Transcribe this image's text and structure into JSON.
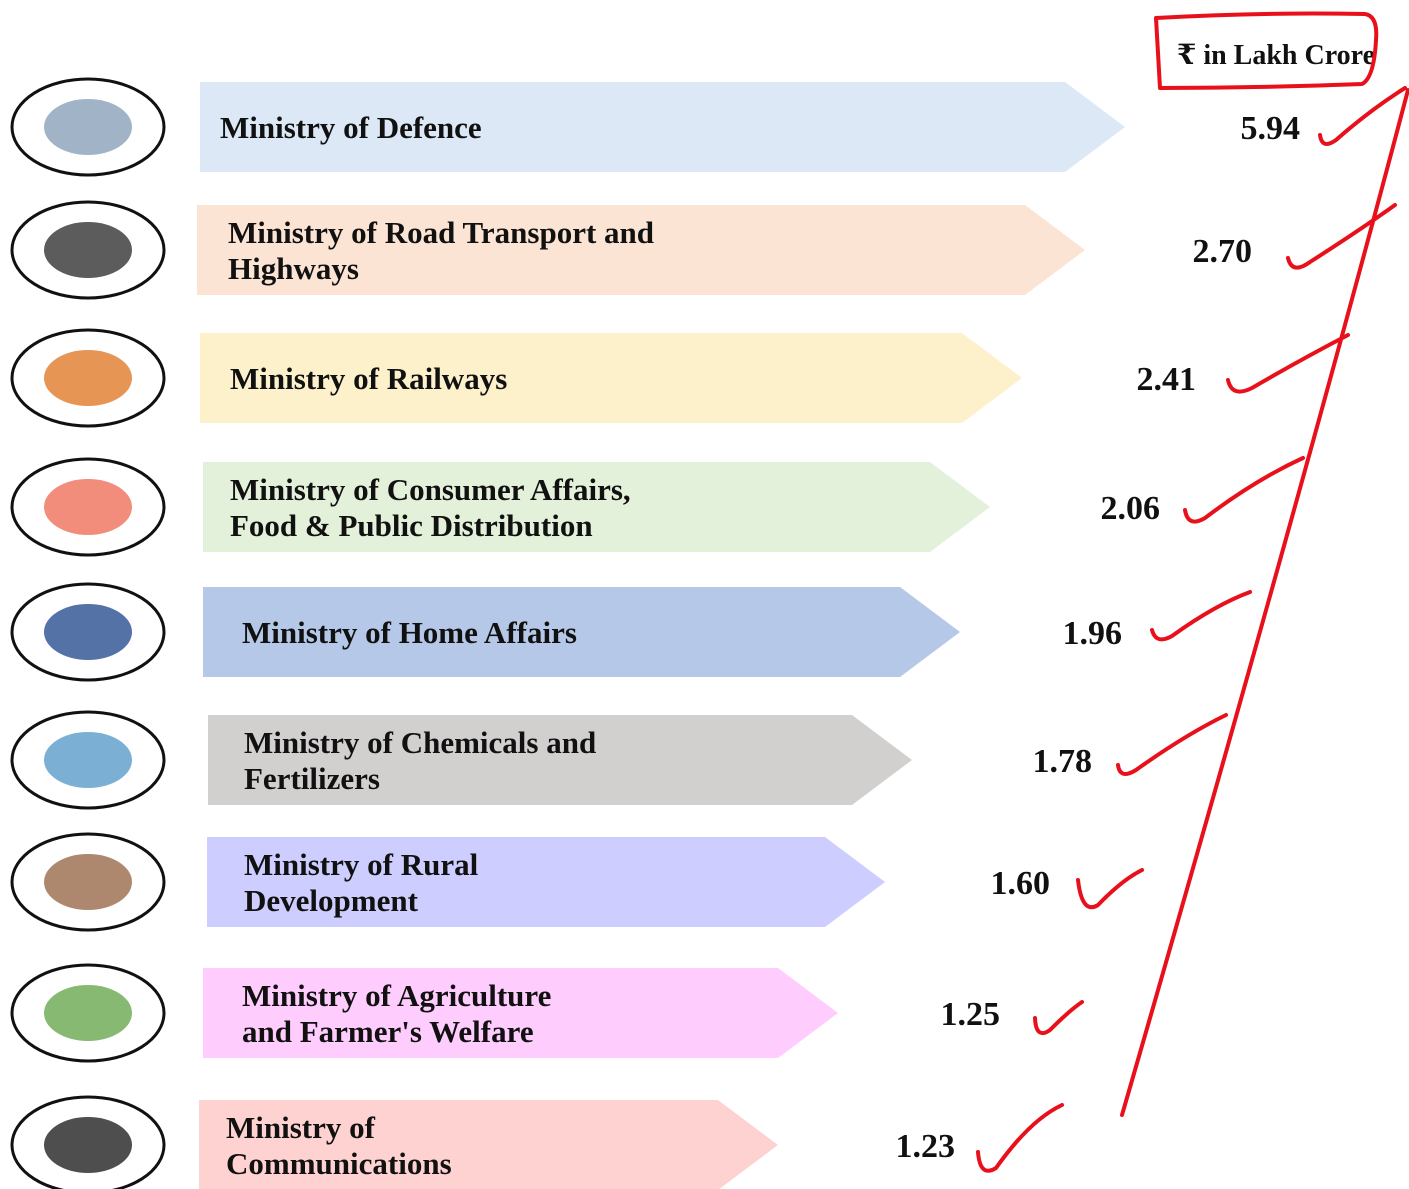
{
  "unit": "₹ in Lakh Crore",
  "items": [
    {
      "label": [
        "Ministry of Defence"
      ],
      "value": "5.94"
    },
    {
      "label": [
        "Ministry of Road Transport and",
        "Highways"
      ],
      "value": "2.70"
    },
    {
      "label": [
        "Ministry of Railways"
      ],
      "value": "2.41"
    },
    {
      "label": [
        "Ministry of Consumer Affairs,",
        "Food & Public Distribution"
      ],
      "value": "2.06"
    },
    {
      "label": [
        "Ministry of Home Affairs"
      ],
      "value": "1.96"
    },
    {
      "label": [
        "Ministry of Chemicals and",
        "Fertilizers"
      ],
      "value": "1.78"
    },
    {
      "label": [
        "Ministry of Rural",
        "Development"
      ],
      "value": "1.60"
    },
    {
      "label": [
        "Ministry of Agriculture",
        "and Farmer's Welfare"
      ],
      "value": "1.25"
    },
    {
      "label": [
        "Ministry of",
        "Communications"
      ],
      "value": "1.23"
    }
  ]
}
